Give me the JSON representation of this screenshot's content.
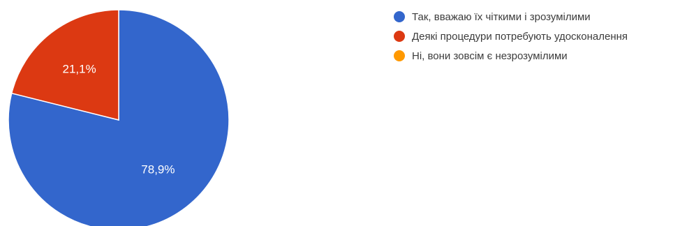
{
  "chart_data": {
    "type": "pie",
    "slices": [
      {
        "label": "Так, вважаю їх чіткими і зрозумілими",
        "value": 78.9,
        "value_label": "78,9%",
        "color": "#3366cc"
      },
      {
        "label": "Деякі процедури потребують удосконалення",
        "value": 21.1,
        "value_label": "21,1%",
        "color": "#dc3912"
      },
      {
        "label": "Ні, вони зовсім є незрозумілими",
        "value": 0,
        "value_label": "",
        "color": "#ff9900"
      }
    ],
    "legend_position": "right",
    "start_angle_deg": 0,
    "direction": "clockwise"
  }
}
